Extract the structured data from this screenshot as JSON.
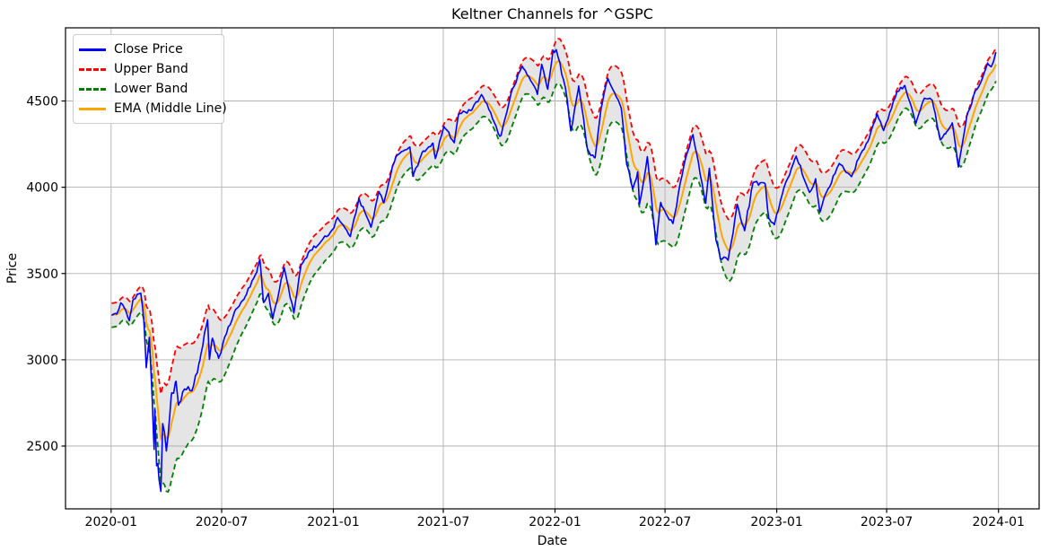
{
  "figure": {
    "title": "Keltner Channels for ^GSPC",
    "xlabel": "Date",
    "ylabel": "Price"
  },
  "legend": {
    "position": "upper left",
    "entries": [
      {
        "label": "Close Price",
        "color": "#0000ff",
        "style": "solid"
      },
      {
        "label": "Upper Band",
        "color": "#ff0000",
        "style": "dashed"
      },
      {
        "label": "Lower Band",
        "color": "#008000",
        "style": "dashed"
      },
      {
        "label": "EMA (Middle Line)",
        "color": "#ffa500",
        "style": "solid"
      }
    ]
  },
  "chart_data": {
    "type": "line",
    "title": "Keltner Channels for ^GSPC",
    "xlabel": "Date",
    "ylabel": "Price",
    "x_ticks": [
      {
        "label": "2020-01",
        "date": "2020-01-01"
      },
      {
        "label": "2020-07",
        "date": "2020-07-01"
      },
      {
        "label": "2021-01",
        "date": "2021-01-01"
      },
      {
        "label": "2021-07",
        "date": "2021-07-01"
      },
      {
        "label": "2022-01",
        "date": "2022-01-01"
      },
      {
        "label": "2022-07",
        "date": "2022-07-01"
      },
      {
        "label": "2023-01",
        "date": "2023-01-01"
      },
      {
        "label": "2023-07",
        "date": "2023-07-01"
      },
      {
        "label": "2024-01",
        "date": "2024-01-01"
      }
    ],
    "y_ticks": [
      2500,
      3000,
      3500,
      4000,
      4500
    ],
    "ylim": [
      2136,
      4924
    ],
    "xlim_days": [
      -75,
      1528
    ],
    "grid": true,
    "legend_position": "upper left",
    "colors": {
      "close": "#0000ff",
      "upper": "#ff0000",
      "lower": "#008000",
      "ema": "#ffa500",
      "band_fill": "#e5e5e5",
      "grid": "#b0b0b0",
      "axes": "#000000"
    },
    "series_names": [
      "Close Price",
      "Upper Band",
      "Lower Band",
      "EMA (Middle Line)"
    ],
    "derived_series_rule": {
      "ema": "exponential moving average of close (middle line)",
      "upper": "ema + band_halfwidth",
      "lower": "ema - band_halfwidth"
    },
    "series": {
      "columns": [
        "date",
        "close",
        "band_halfwidth"
      ],
      "points": [
        [
          "2020-01-02",
          3258,
          70
        ],
        [
          "2020-01-10",
          3265,
          68
        ],
        [
          "2020-01-17",
          3330,
          66
        ],
        [
          "2020-01-24",
          3295,
          68
        ],
        [
          "2020-01-31",
          3226,
          74
        ],
        [
          "2020-02-06",
          3346,
          76
        ],
        [
          "2020-02-14",
          3380,
          76
        ],
        [
          "2020-02-19",
          3386,
          78
        ],
        [
          "2020-02-24",
          3226,
          95
        ],
        [
          "2020-02-28",
          2954,
          130
        ],
        [
          "2020-03-04",
          3130,
          160
        ],
        [
          "2020-03-09",
          2746,
          200
        ],
        [
          "2020-03-12",
          2481,
          240
        ],
        [
          "2020-03-13",
          2711,
          255
        ],
        [
          "2020-03-16",
          2386,
          275
        ],
        [
          "2020-03-18",
          2398,
          290
        ],
        [
          "2020-03-23",
          2237,
          310
        ],
        [
          "2020-03-26",
          2630,
          330
        ],
        [
          "2020-04-01",
          2471,
          340
        ],
        [
          "2020-04-09",
          2790,
          335
        ],
        [
          "2020-04-17",
          2875,
          325
        ],
        [
          "2020-04-21",
          2737,
          310
        ],
        [
          "2020-05-01",
          2831,
          290
        ],
        [
          "2020-05-13",
          2820,
          265
        ],
        [
          "2020-05-26",
          2992,
          235
        ],
        [
          "2020-06-08",
          3232,
          205
        ],
        [
          "2020-06-11",
          3002,
          195
        ],
        [
          "2020-06-16",
          3125,
          185
        ],
        [
          "2020-06-26",
          3009,
          170
        ],
        [
          "2020-07-09",
          3152,
          150
        ],
        [
          "2020-07-22",
          3276,
          135
        ],
        [
          "2020-08-07",
          3351,
          120
        ],
        [
          "2020-08-28",
          3508,
          110
        ],
        [
          "2020-09-02",
          3581,
          108
        ],
        [
          "2020-09-08",
          3332,
          122
        ],
        [
          "2020-09-16",
          3385,
          124
        ],
        [
          "2020-09-23",
          3237,
          128
        ],
        [
          "2020-10-12",
          3534,
          120
        ],
        [
          "2020-10-28",
          3271,
          130
        ],
        [
          "2020-11-09",
          3550,
          122
        ],
        [
          "2020-11-24",
          3635,
          112
        ],
        [
          "2020-12-09",
          3673,
          104
        ],
        [
          "2020-12-31",
          3756,
          98
        ],
        [
          "2021-01-08",
          3825,
          96
        ],
        [
          "2021-01-29",
          3714,
          104
        ],
        [
          "2021-02-12",
          3935,
          98
        ],
        [
          "2021-02-25",
          3829,
          104
        ],
        [
          "2021-03-04",
          3768,
          108
        ],
        [
          "2021-03-17",
          3974,
          104
        ],
        [
          "2021-03-25",
          3910,
          104
        ],
        [
          "2021-04-09",
          4129,
          98
        ],
        [
          "2021-04-16",
          4185,
          94
        ],
        [
          "2021-05-07",
          4233,
          92
        ],
        [
          "2021-05-12",
          4063,
          102
        ],
        [
          "2021-05-27",
          4201,
          96
        ],
        [
          "2021-06-14",
          4255,
          92
        ],
        [
          "2021-06-18",
          4166,
          94
        ],
        [
          "2021-07-02",
          4352,
          90
        ],
        [
          "2021-07-19",
          4258,
          96
        ],
        [
          "2021-07-26",
          4422,
          92
        ],
        [
          "2021-08-17",
          4448,
          90
        ],
        [
          "2021-09-02",
          4537,
          88
        ],
        [
          "2021-09-17",
          4433,
          98
        ],
        [
          "2021-09-30",
          4308,
          112
        ],
        [
          "2021-10-04",
          4300,
          116
        ],
        [
          "2021-10-21",
          4550,
          108
        ],
        [
          "2021-11-08",
          4702,
          102
        ],
        [
          "2021-11-26",
          4595,
          112
        ],
        [
          "2021-12-03",
          4538,
          120
        ],
        [
          "2021-12-10",
          4712,
          122
        ],
        [
          "2021-12-20",
          4568,
          128
        ],
        [
          "2021-12-29",
          4793,
          130
        ],
        [
          "2022-01-03",
          4797,
          130
        ],
        [
          "2022-01-18",
          4577,
          138
        ],
        [
          "2022-01-27",
          4327,
          150
        ],
        [
          "2022-02-09",
          4587,
          148
        ],
        [
          "2022-02-23",
          4226,
          160
        ],
        [
          "2022-03-08",
          4171,
          170
        ],
        [
          "2022-03-18",
          4463,
          168
        ],
        [
          "2022-03-29",
          4631,
          162
        ],
        [
          "2022-04-20",
          4459,
          158
        ],
        [
          "2022-04-29",
          4132,
          168
        ],
        [
          "2022-05-09",
          3991,
          175
        ],
        [
          "2022-05-17",
          4089,
          176
        ],
        [
          "2022-05-20",
          3901,
          180
        ],
        [
          "2022-06-02",
          4177,
          176
        ],
        [
          "2022-06-16",
          3667,
          186
        ],
        [
          "2022-06-24",
          3912,
          182
        ],
        [
          "2022-07-05",
          3831,
          174
        ],
        [
          "2022-07-14",
          3790,
          170
        ],
        [
          "2022-08-03",
          4155,
          155
        ],
        [
          "2022-08-16",
          4305,
          148
        ],
        [
          "2022-09-06",
          3908,
          160
        ],
        [
          "2022-09-12",
          4110,
          158
        ],
        [
          "2022-09-23",
          3693,
          172
        ],
        [
          "2022-09-30",
          3586,
          178
        ],
        [
          "2022-10-13",
          3577,
          182
        ],
        [
          "2022-10-28",
          3901,
          172
        ],
        [
          "2022-11-09",
          3748,
          168
        ],
        [
          "2022-11-23",
          4027,
          156
        ],
        [
          "2022-12-13",
          4020,
          148
        ],
        [
          "2022-12-19",
          3818,
          148
        ],
        [
          "2022-12-28",
          3783,
          145
        ],
        [
          "2023-01-13",
          3999,
          136
        ],
        [
          "2023-02-02",
          4180,
          128
        ],
        [
          "2023-02-24",
          3970,
          132
        ],
        [
          "2023-03-06",
          4049,
          132
        ],
        [
          "2023-03-13",
          3856,
          145
        ],
        [
          "2023-03-24",
          3971,
          138
        ],
        [
          "2023-04-14",
          4138,
          120
        ],
        [
          "2023-05-04",
          4061,
          108
        ],
        [
          "2023-05-19",
          4192,
          100
        ],
        [
          "2023-06-02",
          4282,
          96
        ],
        [
          "2023-06-15",
          4426,
          94
        ],
        [
          "2023-06-26",
          4329,
          94
        ],
        [
          "2023-07-18",
          4555,
          90
        ],
        [
          "2023-07-31",
          4589,
          92
        ],
        [
          "2023-08-18",
          4370,
          104
        ],
        [
          "2023-09-01",
          4516,
          100
        ],
        [
          "2023-09-14",
          4505,
          100
        ],
        [
          "2023-09-27",
          4275,
          112
        ],
        [
          "2023-10-06",
          4309,
          110
        ],
        [
          "2023-10-17",
          4373,
          108
        ],
        [
          "2023-10-27",
          4117,
          118
        ],
        [
          "2023-11-10",
          4415,
          110
        ],
        [
          "2023-11-24",
          4559,
          100
        ],
        [
          "2023-12-01",
          4594,
          98
        ],
        [
          "2023-12-14",
          4720,
          98
        ],
        [
          "2023-12-20",
          4698,
          98
        ],
        [
          "2023-12-28",
          4783,
          96
        ]
      ]
    }
  }
}
